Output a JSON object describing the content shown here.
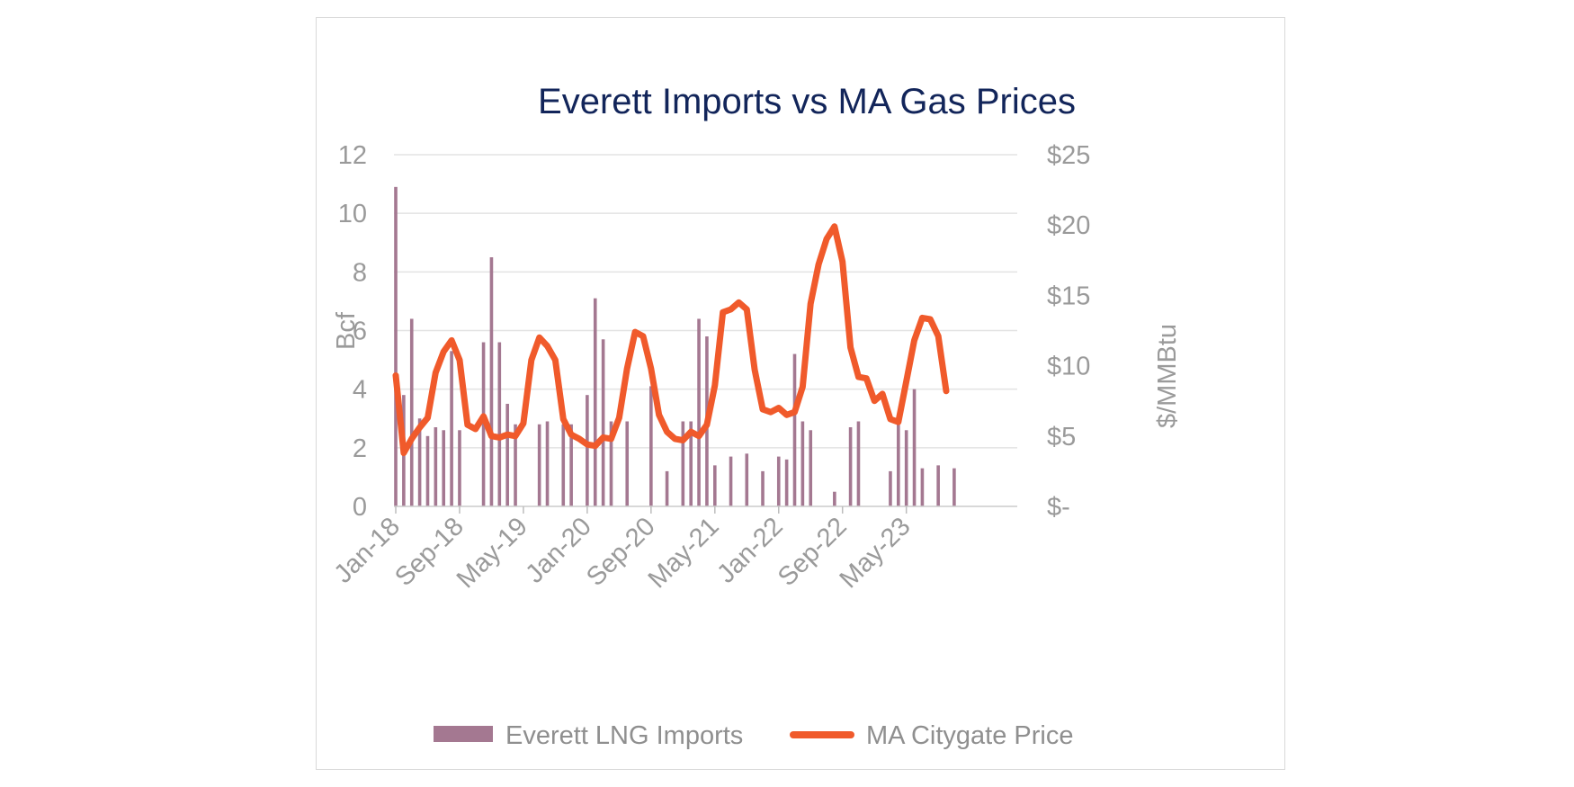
{
  "chart_data": {
    "type": "bar+line",
    "title": "Everett Imports vs MA Gas Prices",
    "y_left": {
      "label": "Bcf",
      "ylim": [
        0,
        12
      ],
      "ticks": [
        "0",
        "2",
        "4",
        "6",
        "8",
        "10",
        "12"
      ]
    },
    "y_right": {
      "label": "$/MMBtu",
      "ylim": [
        0,
        25
      ],
      "ticks": [
        "$-",
        "$5",
        "$10",
        "$15",
        "$20",
        "$25"
      ]
    },
    "x_ticks": [
      "Jan-18",
      "Sep-18",
      "May-19",
      "Jan-20",
      "Sep-20",
      "May-21",
      "Jan-22",
      "Sep-22",
      "May-23"
    ],
    "grid": true,
    "legend_position": "bottom",
    "colors": {
      "bars": "#a47891",
      "line": "#f05a2b",
      "title": "#12255a",
      "text": "#9a9a9a",
      "grid": "#e3e3e3"
    },
    "series": [
      {
        "name": "Everett LNG Imports",
        "type": "bar",
        "axis": "left",
        "start": "2018-01",
        "values": [
          10.9,
          3.8,
          6.4,
          3.0,
          2.4,
          2.7,
          2.6,
          5.3,
          2.6,
          0,
          0,
          5.6,
          8.5,
          5.6,
          3.5,
          2.8,
          0,
          0,
          2.8,
          2.9,
          0,
          2.8,
          2.8,
          0,
          3.8,
          7.1,
          5.7,
          2.9,
          0,
          2.9,
          0,
          0,
          4.1,
          0,
          1.2,
          0,
          2.9,
          2.9,
          6.4,
          5.8,
          1.4,
          0,
          1.7,
          0,
          1.8,
          0,
          1.2,
          0,
          1.7,
          1.6,
          5.2,
          2.9,
          2.6,
          0,
          0,
          0.5,
          0,
          2.7,
          2.9,
          0,
          0,
          0,
          1.2,
          2.8,
          2.6,
          4.0,
          1.3,
          0,
          1.4,
          0,
          1.3,
          0
        ]
      },
      {
        "name": "MA Citygate Price",
        "type": "line",
        "axis": "right",
        "start": "2018-01",
        "values": [
          9.3,
          3.8,
          4.8,
          5.6,
          6.3,
          9.5,
          11.0,
          11.8,
          10.4,
          5.8,
          5.5,
          6.4,
          5.0,
          4.9,
          5.1,
          5.0,
          5.9,
          10.4,
          12.0,
          11.4,
          10.4,
          6.2,
          5.1,
          4.8,
          4.4,
          4.3,
          4.9,
          4.8,
          6.3,
          9.8,
          12.4,
          12.1,
          9.8,
          6.5,
          5.3,
          4.8,
          4.7,
          5.3,
          5.0,
          5.8,
          8.6,
          13.8,
          14.0,
          14.5,
          14.0,
          9.7,
          6.9,
          6.7,
          7.0,
          6.5,
          6.7,
          8.5,
          14.4,
          17.2,
          19.0,
          19.9,
          17.4,
          11.3,
          9.2,
          9.1,
          7.5,
          8.0,
          6.2,
          6.0,
          8.9,
          11.8,
          13.4,
          13.3,
          12.1,
          8.2
        ]
      }
    ]
  }
}
